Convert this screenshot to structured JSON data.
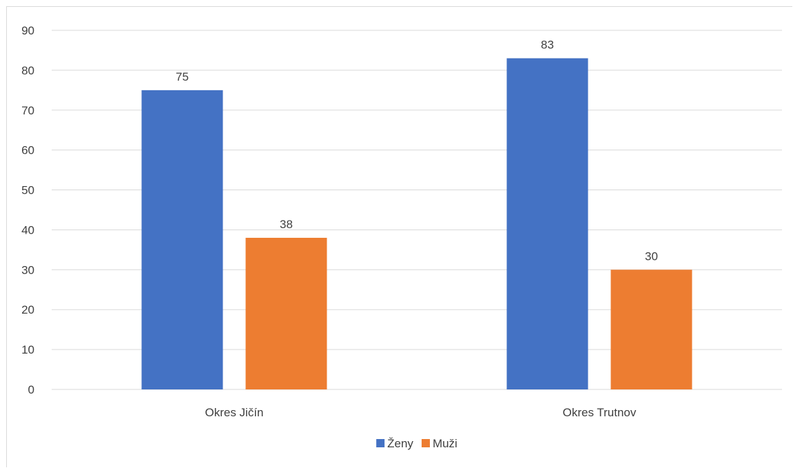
{
  "chart_data": {
    "type": "bar",
    "title": "",
    "xlabel": "",
    "ylabel": "",
    "categories": [
      "Okres Jičín",
      "Okres Trutnov"
    ],
    "series": [
      {
        "name": "Ženy",
        "values": [
          75,
          83
        ],
        "color": "#4472c4"
      },
      {
        "name": "Muži",
        "values": [
          38,
          30
        ],
        "color": "#ed7d31"
      }
    ],
    "ylim": [
      0,
      90
    ],
    "yticks": [
      0,
      10,
      20,
      30,
      40,
      50,
      60,
      70,
      80,
      90
    ],
    "grid": true,
    "legend": "bottom",
    "data_labels": true
  }
}
